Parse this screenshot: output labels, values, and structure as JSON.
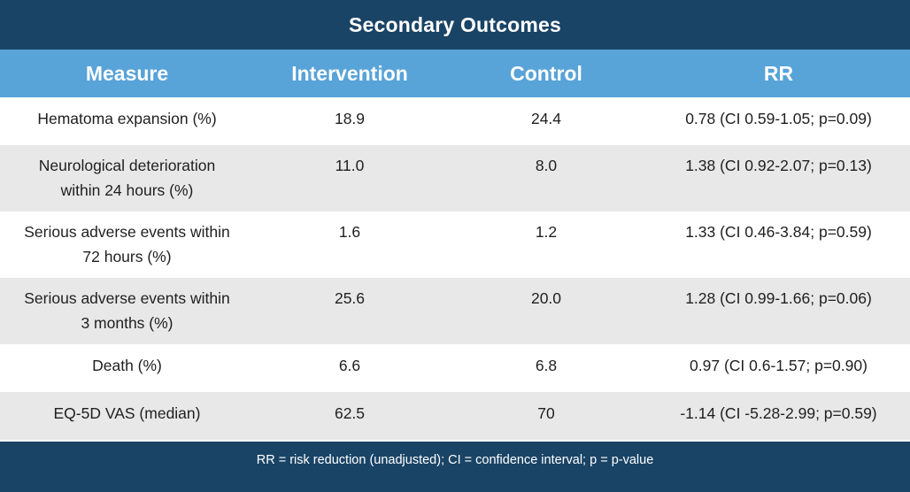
{
  "title": "Secondary Outcomes",
  "columns": [
    "Measure",
    "Intervention",
    "Control",
    "RR"
  ],
  "rows": [
    {
      "measure_line1": "Hematoma expansion (%)",
      "measure_line2": "",
      "intervention": "18.9",
      "control": "24.4",
      "rr": "0.78 (CI 0.59-1.05; p=0.09)"
    },
    {
      "measure_line1": "Neurological deterioration",
      "measure_line2": "within 24 hours (%)",
      "intervention": "11.0",
      "control": "8.0",
      "rr": "1.38 (CI 0.92-2.07; p=0.13)"
    },
    {
      "measure_line1": "Serious adverse events within",
      "measure_line2": "72 hours (%)",
      "intervention": "1.6",
      "control": "1.2",
      "rr": "1.33 (CI 0.46-3.84; p=0.59)"
    },
    {
      "measure_line1": "Serious adverse events within",
      "measure_line2": "3 months (%)",
      "intervention": "25.6",
      "control": "20.0",
      "rr": "1.28 (CI 0.99-1.66; p=0.06)"
    },
    {
      "measure_line1": "Death (%)",
      "measure_line2": "",
      "intervention": "6.6",
      "control": "6.8",
      "rr": "0.97 (CI 0.6-1.57; p=0.90)"
    },
    {
      "measure_line1": "EQ-5D VAS (median)",
      "measure_line2": "",
      "intervention": "62.5",
      "control": "70",
      "rr": "-1.14 (CI -5.28-2.99; p=0.59)"
    }
  ],
  "footnote": "RR = risk reduction (unadjusted); CI = confidence interval; p = p-value",
  "colors": {
    "title_bg": "#1a4466",
    "header_bg": "#58a3d8",
    "row_alt_bg": "#e8e8e8",
    "footer_bg": "#1a4466"
  }
}
